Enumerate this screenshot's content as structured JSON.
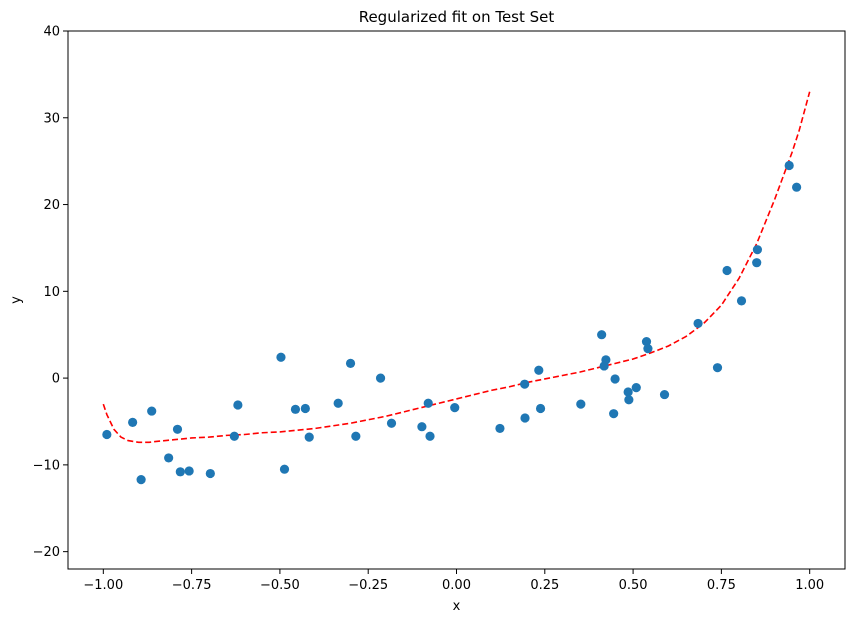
{
  "chart_data": {
    "type": "scatter",
    "title": "Regularized fit on Test Set",
    "xlabel": "x",
    "ylabel": "y",
    "xlim": [
      -1.1,
      1.1
    ],
    "ylim": [
      -22,
      40
    ],
    "xticks": [
      -1.0,
      -0.75,
      -0.5,
      -0.25,
      0.0,
      0.25,
      0.5,
      0.75,
      1.0
    ],
    "xtick_labels": [
      "−1.00",
      "−0.75",
      "−0.50",
      "−0.25",
      "0.00",
      "0.25",
      "0.50",
      "0.75",
      "1.00"
    ],
    "yticks": [
      -20,
      -10,
      0,
      10,
      20,
      30,
      40
    ],
    "ytick_labels": [
      "−20",
      "−10",
      "0",
      "10",
      "20",
      "30",
      "40"
    ],
    "grid": false,
    "colors": {
      "points": "#1f77b4",
      "fit": "#ff0000"
    },
    "points": {
      "x": [
        -0.99,
        -0.917,
        -0.893,
        -0.863,
        -0.815,
        -0.79,
        -0.782,
        -0.757,
        -0.697,
        -0.629,
        -0.619,
        -0.497,
        -0.487,
        -0.456,
        -0.428,
        -0.417,
        -0.335,
        -0.3,
        -0.285,
        -0.215,
        -0.184,
        -0.098,
        -0.08,
        -0.075,
        -0.005,
        0.123,
        0.193,
        0.194,
        0.233,
        0.238,
        0.352,
        0.411,
        0.418,
        0.423,
        0.445,
        0.449,
        0.486,
        0.488,
        0.509,
        0.538,
        0.542,
        0.589,
        0.684,
        0.739,
        0.766,
        0.807,
        0.85,
        0.852,
        0.942,
        0.963
      ],
      "y": [
        -6.5,
        -5.1,
        -11.7,
        -3.8,
        -9.2,
        -5.9,
        -10.8,
        -10.7,
        -11.0,
        -6.7,
        -3.1,
        2.4,
        -10.5,
        -3.6,
        -3.5,
        -6.8,
        -2.9,
        1.7,
        -6.7,
        0.0,
        -5.2,
        -5.6,
        -2.9,
        -6.7,
        -3.4,
        -5.8,
        -0.7,
        -4.6,
        0.9,
        -3.5,
        -3.0,
        5.0,
        1.4,
        2.1,
        -4.1,
        -0.1,
        -1.6,
        -2.5,
        -1.1,
        4.2,
        3.4,
        -1.9,
        6.3,
        1.2,
        12.4,
        8.9,
        13.3,
        14.8,
        24.5,
        22.0
      ]
    },
    "fit": {
      "style": "dashed",
      "x": [
        -1.0,
        -0.99,
        -0.97,
        -0.95,
        -0.93,
        -0.9,
        -0.87,
        -0.85,
        -0.8,
        -0.75,
        -0.7,
        -0.65,
        -0.6,
        -0.55,
        -0.5,
        -0.45,
        -0.4,
        -0.35,
        -0.3,
        -0.25,
        -0.2,
        -0.15,
        -0.1,
        -0.05,
        0.0,
        0.05,
        0.1,
        0.15,
        0.2,
        0.25,
        0.3,
        0.35,
        0.4,
        0.45,
        0.5,
        0.55,
        0.6,
        0.65,
        0.7,
        0.75,
        0.8,
        0.85,
        0.9,
        0.95,
        0.97,
        1.0
      ],
      "y": [
        -3.0,
        -4.2,
        -5.9,
        -6.8,
        -7.2,
        -7.4,
        -7.4,
        -7.3,
        -7.1,
        -6.9,
        -6.8,
        -6.6,
        -6.5,
        -6.3,
        -6.2,
        -6.0,
        -5.8,
        -5.5,
        -5.2,
        -4.8,
        -4.4,
        -3.9,
        -3.4,
        -2.9,
        -2.4,
        -1.9,
        -1.4,
        -1.0,
        -0.5,
        -0.1,
        0.3,
        0.7,
        1.2,
        1.7,
        2.2,
        2.9,
        3.7,
        4.8,
        6.3,
        8.4,
        11.5,
        15.5,
        20.5,
        26.0,
        28.5,
        33.0
      ]
    }
  }
}
